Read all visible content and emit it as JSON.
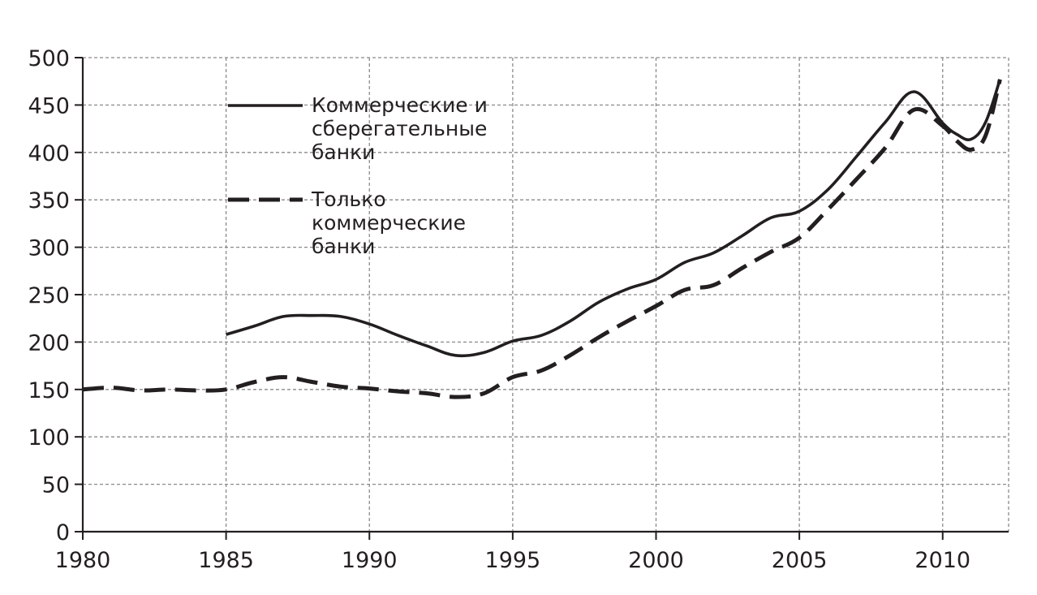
{
  "chart_data": {
    "type": "line",
    "title": "",
    "xlabel": "",
    "ylabel": "",
    "xlim": [
      1980,
      2012.3
    ],
    "ylim": [
      0,
      500
    ],
    "x_ticks": [
      1980,
      1985,
      1990,
      1995,
      2000,
      2005,
      2010
    ],
    "x_tick_labels": [
      "1980",
      "1985",
      "1990",
      "1995",
      "2000",
      "2005",
      "2010"
    ],
    "y_ticks": [
      0,
      50,
      100,
      150,
      200,
      250,
      300,
      350,
      400,
      450,
      500
    ],
    "y_tick_labels": [
      "0",
      "50",
      "100",
      "150",
      "200",
      "250",
      "300",
      "350",
      "400",
      "450",
      "500"
    ],
    "grid": true,
    "legend_position": "top-left",
    "series": [
      {
        "name": "Коммерческие и сберегательные банки",
        "legend_lines": [
          "Коммерческие и",
          "сберегательные",
          "банки"
        ],
        "style": "solid",
        "color": "#231f20",
        "x": [
          1985,
          1986,
          1987,
          1988,
          1989,
          1990,
          1991,
          1992,
          1993,
          1994,
          1995,
          1996,
          1997,
          1998,
          1999,
          2000,
          2001,
          2002,
          2003,
          2004,
          2005,
          2006,
          2007,
          2008,
          2009,
          2010,
          2010.5,
          2011,
          2011.5,
          2012
        ],
        "y": [
          208,
          217,
          227,
          228,
          227,
          219,
          207,
          196,
          186,
          189,
          201,
          207,
          222,
          242,
          256,
          266,
          284,
          294,
          312,
          331,
          338,
          361,
          396,
          432,
          464,
          431,
          419,
          414,
          432,
          477
        ]
      },
      {
        "name": "Только коммерческие банки",
        "legend_lines": [
          "Только",
          "коммерческие",
          "банки"
        ],
        "style": "dashed",
        "color": "#231f20",
        "x": [
          1980,
          1981,
          1982,
          1983,
          1984,
          1985,
          1986,
          1987,
          1988,
          1989,
          1990,
          1991,
          1992,
          1993,
          1994,
          1995,
          1996,
          1997,
          1998,
          1999,
          2000,
          2001,
          2002,
          2003,
          2004,
          2005,
          2006,
          2007,
          2008,
          2009,
          2010,
          2010.5,
          2011,
          2011.5,
          2012
        ],
        "y": [
          150,
          152,
          149,
          150,
          149,
          150,
          158,
          163,
          158,
          153,
          151,
          148,
          146,
          142,
          146,
          163,
          170,
          186,
          205,
          222,
          238,
          255,
          260,
          278,
          295,
          310,
          340,
          372,
          405,
          445,
          428,
          412,
          403,
          418,
          477
        ]
      }
    ]
  }
}
